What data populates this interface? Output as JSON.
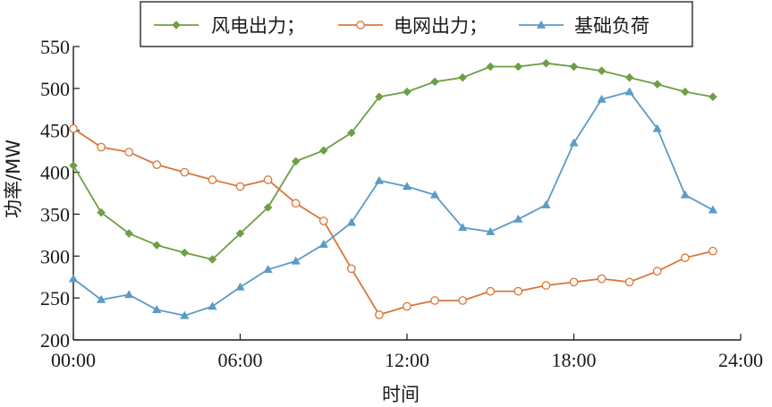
{
  "chart_data": {
    "type": "line",
    "x": [
      "00:00",
      "01:00",
      "02:00",
      "03:00",
      "04:00",
      "05:00",
      "06:00",
      "07:00",
      "08:00",
      "09:00",
      "10:00",
      "11:00",
      "12:00",
      "13:00",
      "14:00",
      "15:00",
      "16:00",
      "17:00",
      "18:00",
      "19:00",
      "20:00",
      "21:00",
      "22:00",
      "23:00"
    ],
    "series": [
      {
        "name": "风电出力；",
        "color": "#6f9e46",
        "marker": "diamond",
        "values": [
          408,
          352,
          327,
          313,
          304,
          296,
          327,
          358,
          413,
          426,
          447,
          490,
          496,
          508,
          513,
          526,
          526,
          530,
          526,
          521,
          513,
          505,
          496,
          490
        ]
      },
      {
        "name": "电网出力；",
        "color": "#d9773a",
        "marker": "circle-open",
        "values": [
          452,
          430,
          424,
          409,
          400,
          391,
          383,
          391,
          363,
          342,
          285,
          230,
          240,
          247,
          247,
          258,
          258,
          265,
          269,
          273,
          269,
          282,
          298,
          306
        ]
      },
      {
        "name": "基础负荷",
        "color": "#5b9bc6",
        "marker": "triangle",
        "values": [
          273,
          248,
          254,
          236,
          229,
          240,
          263,
          284,
          294,
          314,
          340,
          390,
          383,
          373,
          334,
          329,
          344,
          361,
          435,
          487,
          496,
          452,
          373,
          355
        ]
      }
    ],
    "xlabel": "时间",
    "ylabel": "功率/MW",
    "xticks": [
      "00:00",
      "06:00",
      "12:00",
      "18:00",
      "24:00"
    ],
    "yticks": [
      200,
      250,
      300,
      350,
      400,
      450,
      500,
      550
    ],
    "ylim": [
      200,
      550
    ],
    "xlim_hours": [
      0,
      24
    ],
    "grid": false,
    "legend": {
      "position": "top-center",
      "bordered": true
    }
  }
}
